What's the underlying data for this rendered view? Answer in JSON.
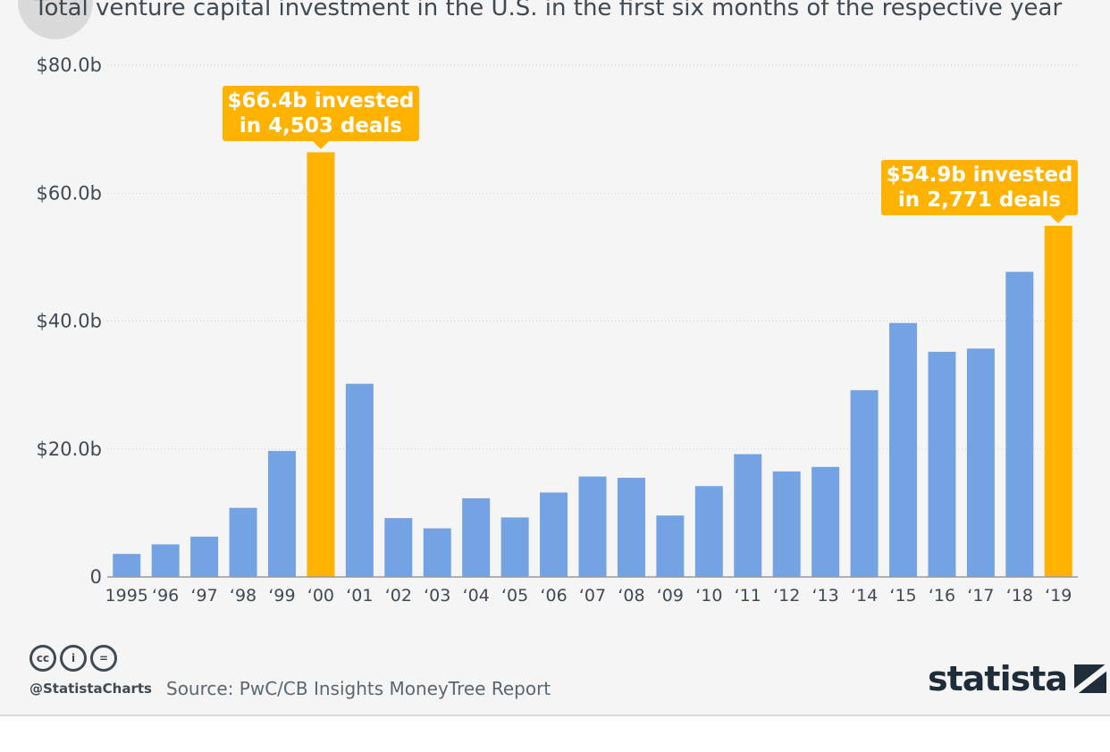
{
  "chart_data": {
    "type": "bar",
    "title": "",
    "subtitle": "Total venture capital investment in the U.S. in the first six months of the respective year",
    "xlabel": "",
    "ylabel": "",
    "ylim": [
      0,
      80
    ],
    "yticks": [
      {
        "value": 0,
        "label": "0"
      },
      {
        "value": 20,
        "label": "$20.0b"
      },
      {
        "value": 40,
        "label": "$40.0b"
      },
      {
        "value": 60,
        "label": "$60.0b"
      },
      {
        "value": 80,
        "label": "$80.0b"
      }
    ],
    "categories": [
      "1995",
      "‘96",
      "‘97",
      "‘98",
      "‘99",
      "‘00",
      "‘01",
      "‘02",
      "‘03",
      "‘04",
      "‘05",
      "‘06",
      "‘07",
      "‘08",
      "‘09",
      "‘10",
      "‘11",
      "‘12",
      "‘13",
      "‘14",
      "‘15",
      "‘16",
      "‘17",
      "‘18",
      "‘19"
    ],
    "values": [
      3.6,
      5.1,
      6.3,
      10.8,
      19.7,
      66.4,
      30.2,
      9.2,
      7.6,
      12.3,
      9.3,
      13.2,
      15.7,
      15.5,
      9.6,
      14.2,
      19.2,
      16.5,
      17.2,
      29.2,
      39.7,
      35.2,
      35.7,
      47.7,
      54.9
    ],
    "highlighted": [
      "‘00",
      "‘19"
    ],
    "grid": true,
    "colors": {
      "bar": "#74a3e3",
      "highlight": "#ffb300",
      "grid": "#cfcfcf",
      "axis": "#9a9a9a",
      "text": "#3f4a52"
    },
    "annotations": [
      {
        "category": "‘00",
        "line1": "$66.4b invested",
        "line2": "in 4,503 deals"
      },
      {
        "category": "‘19",
        "line1": "$54.9b invested",
        "line2": "in 2,771 deals"
      }
    ]
  },
  "footer": {
    "license_icons": [
      "cc-icon",
      "attribution-icon",
      "no-derivatives-icon"
    ],
    "license_glyphs": [
      "cc",
      "i",
      "="
    ],
    "handle": "@StatistaCharts",
    "source": "Source: PwC/CB Insights MoneyTree Report",
    "brand": "statista"
  }
}
